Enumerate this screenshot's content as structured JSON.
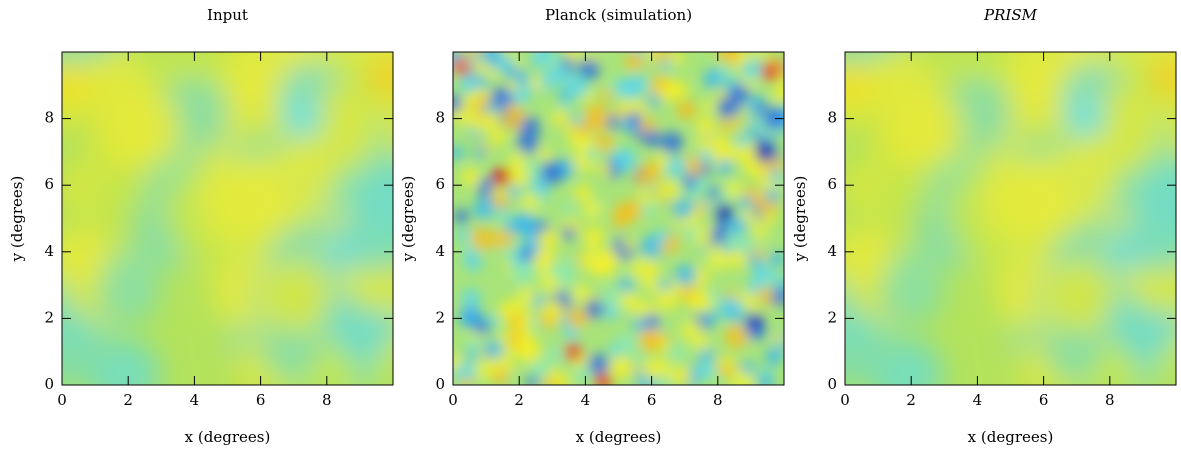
{
  "chart_data": [
    {
      "type": "heatmap",
      "title": "Input",
      "title_style": "normal",
      "xlabel": "x (degrees)",
      "ylabel": "y (degrees)",
      "xlim": [
        0,
        10
      ],
      "ylim": [
        0,
        10
      ],
      "xticks": [
        0,
        2,
        4,
        6,
        8
      ],
      "yticks": [
        0,
        2,
        4,
        6,
        8
      ]
    },
    {
      "type": "heatmap",
      "title": "Planck (simulation)",
      "title_style": "normal",
      "xlabel": "x (degrees)",
      "ylabel": "y (degrees)",
      "xlim": [
        0,
        10
      ],
      "ylim": [
        0,
        10
      ],
      "xticks": [
        0,
        2,
        4,
        6,
        8
      ],
      "yticks": [
        0,
        2,
        4,
        6,
        8
      ]
    },
    {
      "type": "heatmap",
      "title": "PRISM",
      "title_style": "italic",
      "xlabel": "x (degrees)",
      "ylabel": "y (degrees)",
      "xlim": [
        0,
        10
      ],
      "ylim": [
        0,
        10
      ],
      "xticks": [
        0,
        2,
        4,
        6,
        8
      ],
      "yticks": [
        0,
        2,
        4,
        6,
        8
      ]
    }
  ]
}
